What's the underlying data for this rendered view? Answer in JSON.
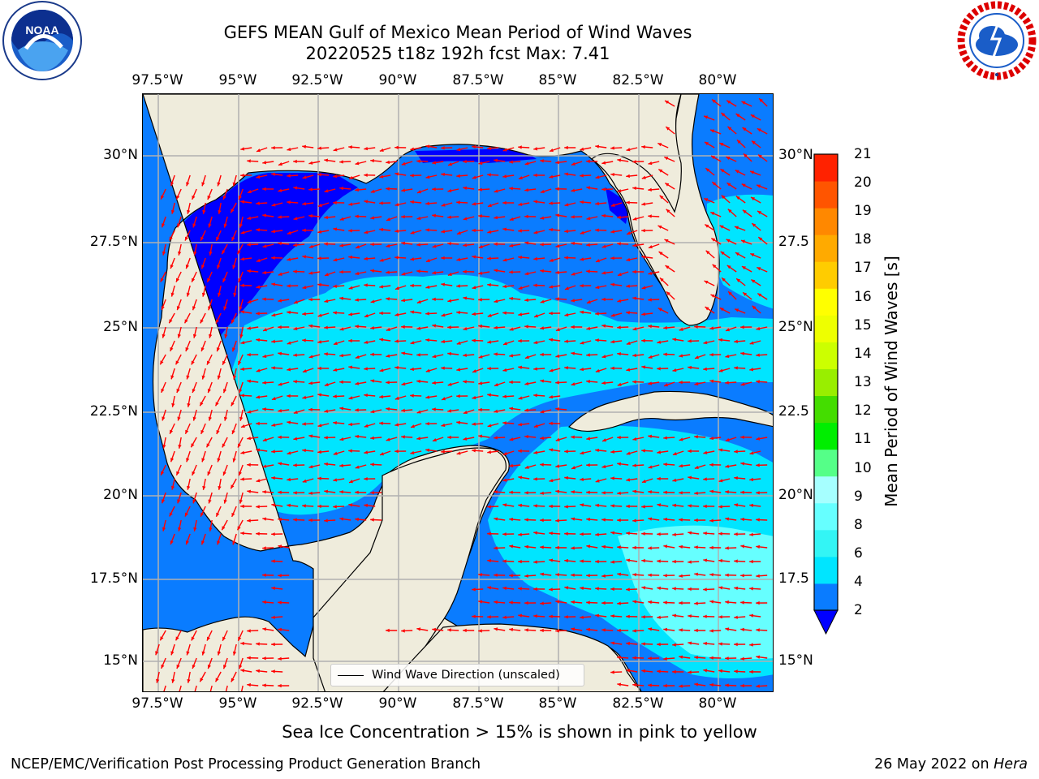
{
  "title": {
    "line1": "GEFS MEAN Gulf of Mexico Mean Period of Wind Waves",
    "line2": "20220525 t18z 192h fcst   Max: 7.41"
  },
  "logos": {
    "left": "noaa-logo",
    "right": "nws-logo"
  },
  "axes": {
    "lon_ticks": [
      "97.5°W",
      "95°W",
      "92.5°W",
      "90°W",
      "87.5°W",
      "85°W",
      "82.5°W",
      "80°W"
    ],
    "lat_ticks": [
      "30°N",
      "27.5°N",
      "25°N",
      "22.5°N",
      "20°N",
      "17.5°N",
      "15°N"
    ],
    "lat_ticks_right": [
      "30°N",
      "27.5",
      "25°N",
      "22.5",
      "20°N",
      "17.5",
      "15°N"
    ],
    "lon_values": [
      -97.5,
      -95,
      -92.5,
      -90,
      -87.5,
      -85,
      -82.5,
      -80
    ],
    "lat_values": [
      30,
      27.5,
      25,
      22.5,
      20,
      17.5,
      15
    ],
    "lon_range": [
      -98,
      -78.25
    ],
    "lat_range": [
      14.0,
      31.75
    ],
    "grid": true
  },
  "legend": {
    "label": "Wind Wave Direction (unscaled)",
    "arrow_color": "#ff0000"
  },
  "colorbar": {
    "label": "Mean Period of Wind Waves [s]",
    "tick_labels": [
      "21",
      "20",
      "19",
      "18",
      "17",
      "16",
      "15",
      "14",
      "13",
      "12",
      "11",
      "10",
      "9",
      "8",
      "6",
      "4",
      "2"
    ],
    "levels": [
      2,
      4,
      6,
      8,
      9,
      10,
      11,
      12,
      13,
      14,
      15,
      16,
      17,
      18,
      19,
      20,
      21
    ],
    "colors": [
      "#0a7cff",
      "#00e5ff",
      "#33f5f5",
      "#66ffff",
      "#a6ffff",
      "#55ff88",
      "#00ee00",
      "#44dd00",
      "#99ee00",
      "#ccff00",
      "#eeff00",
      "#ffff00",
      "#ffcc00",
      "#ffaa00",
      "#ff8800",
      "#ff5500",
      "#ff2200",
      "#ff0000"
    ],
    "under_color": "#0000ff",
    "extend": "min"
  },
  "map_colors": {
    "land": "#efecdc",
    "ocean_white": "#ffffff",
    "grid": "#b0b0b0",
    "coast": "#000000"
  },
  "footnote": "Sea Ice Concentration > 15% is shown in pink to yellow",
  "credit": {
    "left": "NCEP/EMC/Verification Post Processing Product Generation Branch",
    "date": "26 May 2022 on ",
    "host": "Hera"
  }
}
